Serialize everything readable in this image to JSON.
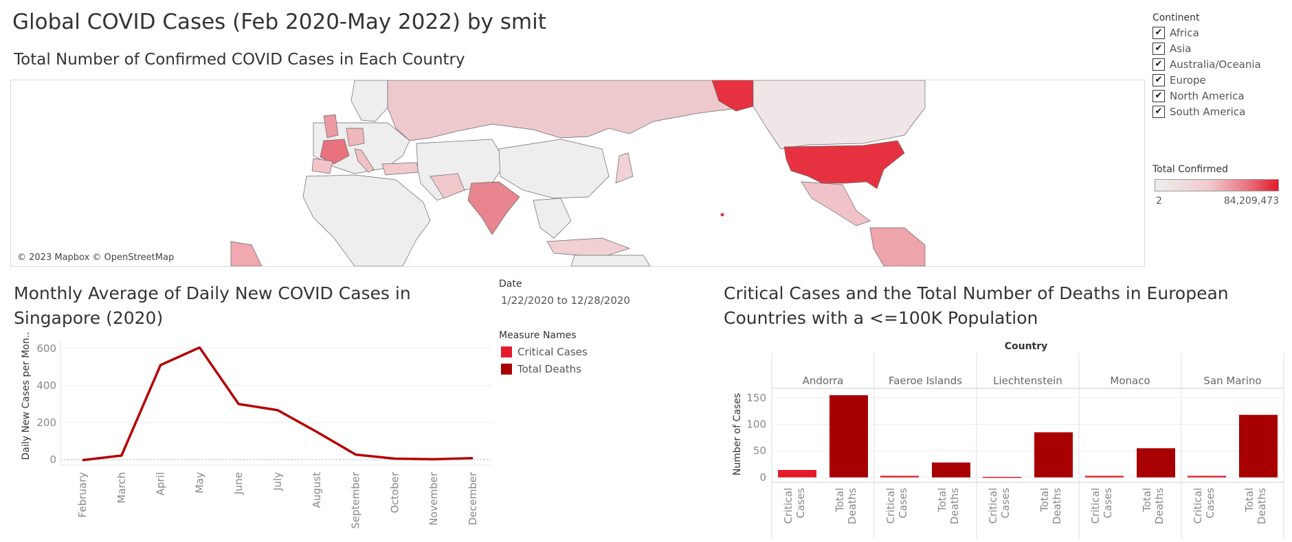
{
  "dashboard": {
    "title": "Global COVID Cases (Feb 2020-May 2022) by smit"
  },
  "map": {
    "title": "Total Number of Confirmed COVID Cases in Each Country",
    "credit": "© 2023 Mapbox © OpenStreetMap",
    "colors": {
      "low": "#eeeeee",
      "high": "#e31a2b"
    }
  },
  "continent_filter": {
    "title": "Continent",
    "options": [
      {
        "label": "Africa",
        "checked": true
      },
      {
        "label": "Asia",
        "checked": true
      },
      {
        "label": "Australia/Oceania",
        "checked": true
      },
      {
        "label": "Europe",
        "checked": true
      },
      {
        "label": "North America",
        "checked": true
      },
      {
        "label": "South America",
        "checked": true
      }
    ]
  },
  "color_legend": {
    "title": "Total Confirmed",
    "min_label": "2",
    "max_label": "84,209,473"
  },
  "date_filter": {
    "title": "Date",
    "value": "1/22/2020 to 12/28/2020"
  },
  "measure_legend": {
    "title": "Measure Names",
    "items": [
      {
        "label": "Critical Cases",
        "color": "#e31a2b"
      },
      {
        "label": "Total Deaths",
        "color": "#a80000"
      }
    ]
  },
  "chart_data": [
    {
      "type": "line",
      "title": "Monthly Average of Daily New COVID Cases in Singapore (2020)",
      "ylabel": "Daily New Cases per Mon..",
      "xlabel": "",
      "categories": [
        "February",
        "March",
        "April",
        "May",
        "June",
        "July",
        "August",
        "September",
        "October",
        "November",
        "December"
      ],
      "series": [
        {
          "values": [
            -3,
            22,
            510,
            605,
            300,
            267,
            150,
            27,
            5,
            2,
            8
          ],
          "color": "#b30000"
        }
      ],
      "yticks": [
        0,
        200,
        400,
        600
      ],
      "ylim": [
        -30,
        640
      ],
      "grid": true
    },
    {
      "type": "bar",
      "title": "Critical Cases and the Total Number of Deaths in European Countries with a <=100K Population",
      "column_header": "Country",
      "ylabel": "Number of Cases",
      "countries": [
        "Andorra",
        "Faeroe Islands",
        "Liechtenstein",
        "Monaco",
        "San Marino"
      ],
      "measures": [
        "Critical Cases",
        "Total Deaths"
      ],
      "measure_tick_labels": [
        [
          "Critical",
          "Cases"
        ],
        [
          "Total",
          "Deaths"
        ]
      ],
      "series": [
        {
          "name": "Critical Cases",
          "values": [
            14,
            3,
            1,
            3,
            3
          ],
          "color": "#e31a2b"
        },
        {
          "name": "Total Deaths",
          "values": [
            155,
            28,
            85,
            55,
            118
          ],
          "color": "#a80000"
        }
      ],
      "yticks": [
        0,
        50,
        100,
        150
      ],
      "ylim": [
        -8,
        168
      ],
      "grid": true
    }
  ]
}
